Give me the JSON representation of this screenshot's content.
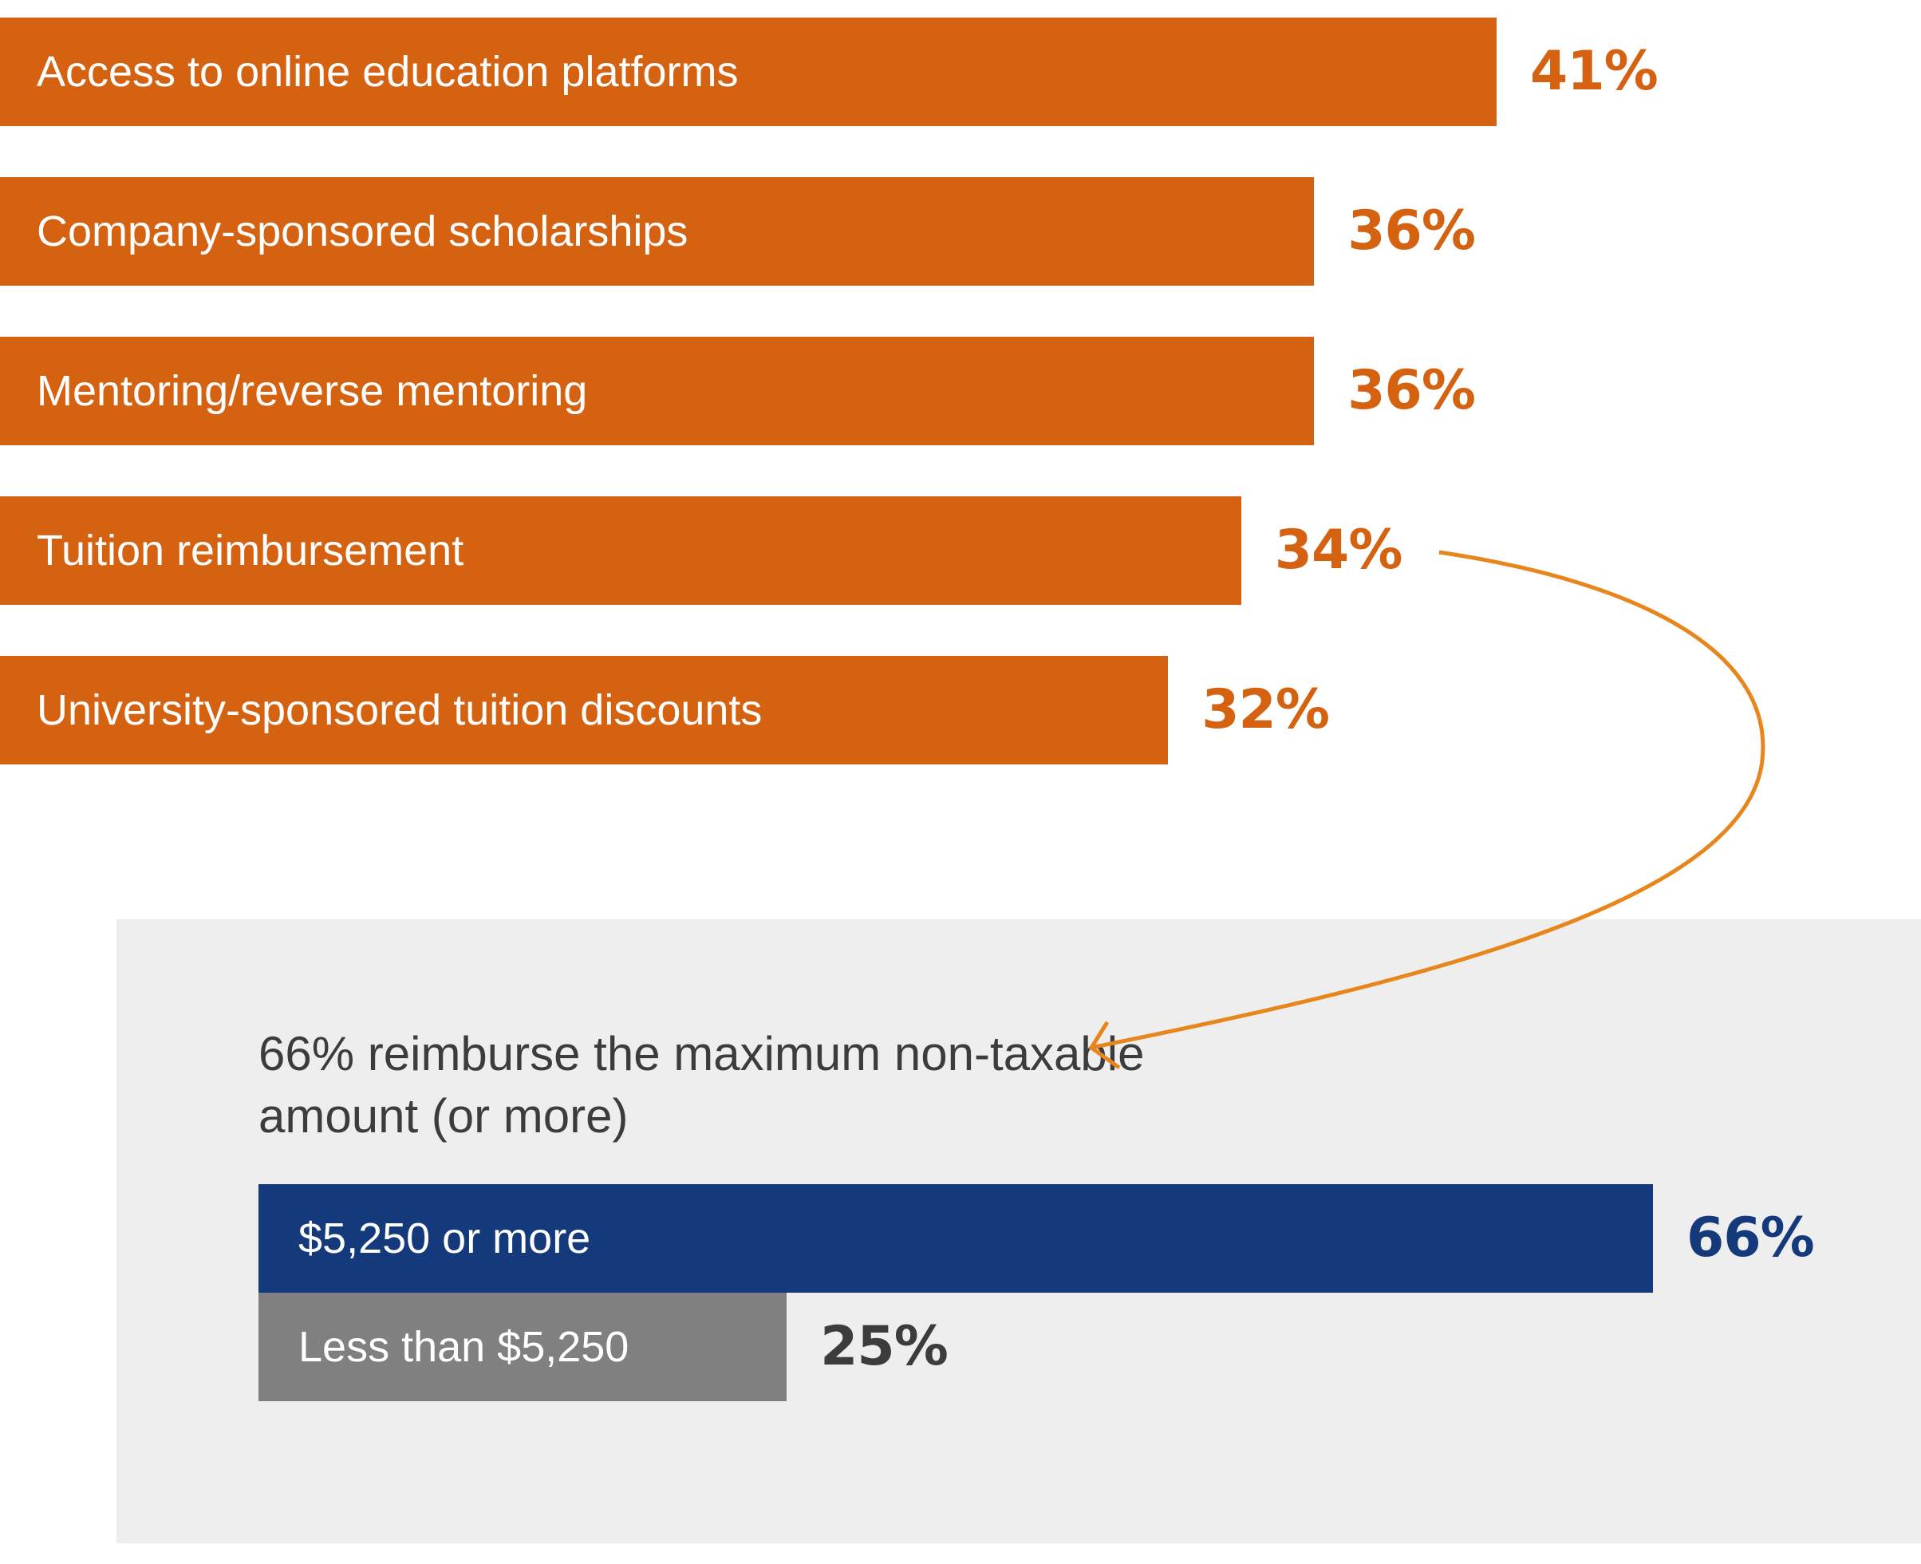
{
  "chart_data": [
    {
      "type": "bar",
      "orientation": "horizontal",
      "categories": [
        "Access to online education platforms",
        "Company-sponsored scholarships",
        "Mentoring/reverse mentoring",
        "Tuition reimbursement",
        "University-sponsored tuition discounts"
      ],
      "values": [
        41,
        36,
        36,
        34,
        32
      ],
      "value_labels": [
        "41%",
        "36%",
        "36%",
        "34%",
        "32%"
      ],
      "unit": "%",
      "color": "#d46211",
      "xlim": [
        0,
        41
      ]
    },
    {
      "type": "bar",
      "orientation": "horizontal",
      "title": "66% reimburse the maximum non-taxable amount (or more)",
      "categories": [
        "$5,250 or more",
        "Less than $5,250"
      ],
      "values": [
        66,
        25
      ],
      "value_labels": [
        "66%",
        "25%"
      ],
      "unit": "%",
      "colors": [
        "#143a7b",
        "#808080"
      ],
      "value_label_colors": [
        "#143a7b",
        "#3c3c3c"
      ],
      "xlim": [
        0,
        66
      ]
    }
  ],
  "annotation": {
    "type": "arrow",
    "from": "Tuition reimbursement",
    "to": "66% reimburse the maximum non-taxable amount (or more)",
    "color": "#e8861e"
  }
}
